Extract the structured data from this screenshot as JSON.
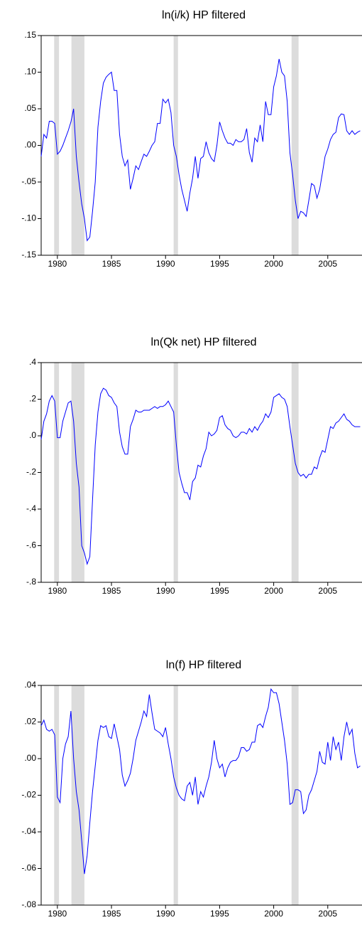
{
  "chart_data": [
    {
      "type": "line",
      "title": "ln(i/k) HP filtered",
      "x": [
        1978.5,
        1978.75,
        1979,
        1979.25,
        1979.5,
        1979.75,
        1980,
        1980.25,
        1980.5,
        1980.75,
        1981,
        1981.25,
        1981.5,
        1981.75,
        1982,
        1982.25,
        1982.5,
        1982.75,
        1983,
        1983.25,
        1983.5,
        1983.75,
        1984,
        1984.25,
        1984.5,
        1984.75,
        1985,
        1985.25,
        1985.5,
        1985.75,
        1986,
        1986.25,
        1986.5,
        1986.75,
        1987,
        1987.25,
        1987.5,
        1987.75,
        1988,
        1988.25,
        1988.5,
        1988.75,
        1989,
        1989.25,
        1989.5,
        1989.75,
        1990,
        1990.25,
        1990.5,
        1990.75,
        1991,
        1991.25,
        1991.5,
        1991.75,
        1992,
        1992.25,
        1992.5,
        1992.75,
        1993,
        1993.25,
        1993.5,
        1993.75,
        1994,
        1994.25,
        1994.5,
        1994.75,
        1995,
        1995.25,
        1995.5,
        1995.75,
        1996,
        1996.25,
        1996.5,
        1996.75,
        1997,
        1997.25,
        1997.5,
        1997.75,
        1998,
        1998.25,
        1998.5,
        1998.75,
        1999,
        1999.25,
        1999.5,
        1999.75,
        2000,
        2000.25,
        2000.5,
        2000.75,
        2001,
        2001.25,
        2001.5,
        2001.75,
        2002,
        2002.25,
        2002.5,
        2002.75,
        2003,
        2003.25,
        2003.5,
        2003.75,
        2004,
        2004.25,
        2004.5,
        2004.75,
        2005,
        2005.25,
        2005.5,
        2005.75,
        2006,
        2006.25,
        2006.5,
        2006.75,
        2007,
        2007.25,
        2007.5,
        2007.75,
        2008
      ],
      "series": [
        {
          "color": "#0000ff",
          "values": [
            -0.015,
            0.015,
            0.01,
            0.033,
            0.033,
            0.03,
            -0.012,
            -0.008,
            0.0,
            0.01,
            0.02,
            0.032,
            0.05,
            -0.015,
            -0.05,
            -0.08,
            -0.1,
            -0.13,
            -0.125,
            -0.09,
            -0.05,
            0.025,
            0.06,
            0.085,
            0.093,
            0.097,
            0.1,
            0.075,
            0.075,
            0.015,
            -0.015,
            -0.028,
            -0.02,
            -0.06,
            -0.045,
            -0.028,
            -0.033,
            -0.022,
            -0.012,
            -0.015,
            -0.008,
            0.0,
            0.005,
            0.03,
            0.03,
            0.063,
            0.058,
            0.063,
            0.045,
            0.0,
            -0.015,
            -0.04,
            -0.06,
            -0.075,
            -0.09,
            -0.065,
            -0.045,
            -0.015,
            -0.045,
            -0.018,
            -0.015,
            0.005,
            -0.01,
            -0.018,
            -0.022,
            0.0,
            0.032,
            0.02,
            0.01,
            0.003,
            0.003,
            0.0,
            0.008,
            0.005,
            0.005,
            0.008,
            0.023,
            -0.01,
            -0.023,
            0.01,
            0.005,
            0.028,
            0.005,
            0.06,
            0.042,
            0.042,
            0.08,
            0.095,
            0.118,
            0.1,
            0.095,
            0.06,
            -0.01,
            -0.04,
            -0.075,
            -0.1,
            -0.09,
            -0.092,
            -0.097,
            -0.075,
            -0.052,
            -0.055,
            -0.072,
            -0.06,
            -0.038,
            -0.015,
            -0.005,
            0.008,
            0.015,
            0.018,
            0.038,
            0.043,
            0.042,
            0.02,
            0.015,
            0.02,
            0.015,
            0.018,
            0.02
          ]
        }
      ],
      "xlim": [
        1978.5,
        2008.1
      ],
      "xticks": [
        1980,
        1985,
        1990,
        1995,
        2000,
        2005
      ],
      "ylim": [
        -0.15,
        0.15
      ],
      "yticks": [
        {
          "value": -0.15,
          "label": "-.15"
        },
        {
          "value": -0.1,
          "label": "-.10"
        },
        {
          "value": -0.05,
          "label": "-.05"
        },
        {
          "value": 0,
          "label": ".00"
        },
        {
          "value": 0.05,
          "label": ".05"
        },
        {
          "value": 0.1,
          "label": ".10"
        },
        {
          "value": 0.15,
          "label": ".15"
        }
      ],
      "shaded": [
        [
          1979.7,
          1980.15
        ],
        [
          1981.3,
          1982.5
        ],
        [
          1990.75,
          1991.15
        ],
        [
          2001.65,
          2002.3
        ]
      ],
      "shade_color": "#dcdcdc"
    },
    {
      "type": "line",
      "title": "ln(Qk net) HP filtered",
      "x": [
        1978.5,
        1978.75,
        1979,
        1979.25,
        1979.5,
        1979.75,
        1980,
        1980.25,
        1980.5,
        1980.75,
        1981,
        1981.25,
        1981.5,
        1981.75,
        1982,
        1982.25,
        1982.5,
        1982.75,
        1983,
        1983.25,
        1983.5,
        1983.75,
        1984,
        1984.25,
        1984.5,
        1984.75,
        1985,
        1985.25,
        1985.5,
        1985.75,
        1986,
        1986.25,
        1986.5,
        1986.75,
        1987,
        1987.25,
        1987.5,
        1987.75,
        1988,
        1988.25,
        1988.5,
        1988.75,
        1989,
        1989.25,
        1989.5,
        1989.75,
        1990,
        1990.25,
        1990.5,
        1990.75,
        1991,
        1991.25,
        1991.5,
        1991.75,
        1992,
        1992.25,
        1992.5,
        1992.75,
        1993,
        1993.25,
        1993.5,
        1993.75,
        1994,
        1994.25,
        1994.5,
        1994.75,
        1995,
        1995.25,
        1995.5,
        1995.75,
        1996,
        1996.25,
        1996.5,
        1996.75,
        1997,
        1997.25,
        1997.5,
        1997.75,
        1998,
        1998.25,
        1998.5,
        1998.75,
        1999,
        1999.25,
        1999.5,
        1999.75,
        2000,
        2000.25,
        2000.5,
        2000.75,
        2001,
        2001.25,
        2001.5,
        2001.75,
        2002,
        2002.25,
        2002.5,
        2002.75,
        2003,
        2003.25,
        2003.5,
        2003.75,
        2004,
        2004.25,
        2004.5,
        2004.75,
        2005,
        2005.25,
        2005.5,
        2005.75,
        2006,
        2006.25,
        2006.5,
        2006.75,
        2007,
        2007.25,
        2007.5,
        2007.75,
        2008
      ],
      "series": [
        {
          "color": "#0000ff",
          "values": [
            -0.02,
            0.08,
            0.12,
            0.19,
            0.22,
            0.19,
            -0.01,
            -0.01,
            0.08,
            0.13,
            0.18,
            0.19,
            0.08,
            -0.15,
            -0.28,
            -0.6,
            -0.64,
            -0.7,
            -0.66,
            -0.35,
            -0.05,
            0.13,
            0.23,
            0.26,
            0.25,
            0.22,
            0.21,
            0.18,
            0.16,
            0.02,
            -0.06,
            -0.1,
            -0.1,
            0.05,
            0.09,
            0.14,
            0.13,
            0.13,
            0.14,
            0.14,
            0.14,
            0.15,
            0.16,
            0.15,
            0.16,
            0.16,
            0.17,
            0.19,
            0.16,
            0.13,
            -0.05,
            -0.2,
            -0.26,
            -0.31,
            -0.31,
            -0.35,
            -0.25,
            -0.23,
            -0.16,
            -0.17,
            -0.11,
            -0.07,
            0.02,
            0.0,
            0.01,
            0.03,
            0.1,
            0.11,
            0.06,
            0.04,
            0.03,
            0.0,
            -0.01,
            0.0,
            0.02,
            0.02,
            0.01,
            0.04,
            0.02,
            0.05,
            0.03,
            0.06,
            0.08,
            0.12,
            0.1,
            0.13,
            0.21,
            0.22,
            0.23,
            0.21,
            0.2,
            0.16,
            0.05,
            -0.05,
            -0.15,
            -0.2,
            -0.22,
            -0.21,
            -0.23,
            -0.21,
            -0.21,
            -0.17,
            -0.18,
            -0.12,
            -0.08,
            -0.09,
            -0.02,
            0.05,
            0.04,
            0.07,
            0.08,
            0.1,
            0.12,
            0.09,
            0.08,
            0.06,
            0.05,
            0.05,
            0.05
          ]
        }
      ],
      "xlim": [
        1978.5,
        2008.1
      ],
      "xticks": [
        1980,
        1985,
        1990,
        1995,
        2000,
        2005
      ],
      "ylim": [
        -0.8,
        0.4
      ],
      "yticks": [
        {
          "value": -0.8,
          "label": "-.8"
        },
        {
          "value": -0.6,
          "label": "-.6"
        },
        {
          "value": -0.4,
          "label": "-.4"
        },
        {
          "value": -0.2,
          "label": "-.2"
        },
        {
          "value": 0,
          "label": ".0"
        },
        {
          "value": 0.2,
          "label": ".2"
        },
        {
          "value": 0.4,
          "label": ".4"
        }
      ],
      "shaded": [
        [
          1979.7,
          1980.15
        ],
        [
          1981.3,
          1982.5
        ],
        [
          1990.75,
          1991.15
        ],
        [
          2001.65,
          2002.3
        ]
      ],
      "shade_color": "#dcdcdc"
    },
    {
      "type": "line",
      "title": "ln(f) HP filtered",
      "x": [
        1978.5,
        1978.75,
        1979,
        1979.25,
        1979.5,
        1979.75,
        1980,
        1980.25,
        1980.5,
        1980.75,
        1981,
        1981.25,
        1981.5,
        1981.75,
        1982,
        1982.25,
        1982.5,
        1982.75,
        1983,
        1983.25,
        1983.5,
        1983.75,
        1984,
        1984.25,
        1984.5,
        1984.75,
        1985,
        1985.25,
        1985.5,
        1985.75,
        1986,
        1986.25,
        1986.5,
        1986.75,
        1987,
        1987.25,
        1987.5,
        1987.75,
        1988,
        1988.25,
        1988.5,
        1988.75,
        1989,
        1989.25,
        1989.5,
        1989.75,
        1990,
        1990.25,
        1990.5,
        1990.75,
        1991,
        1991.25,
        1991.5,
        1991.75,
        1992,
        1992.25,
        1992.5,
        1992.75,
        1993,
        1993.25,
        1993.5,
        1993.75,
        1994,
        1994.25,
        1994.5,
        1994.75,
        1995,
        1995.25,
        1995.5,
        1995.75,
        1996,
        1996.25,
        1996.5,
        1996.75,
        1997,
        1997.25,
        1997.5,
        1997.75,
        1998,
        1998.25,
        1998.5,
        1998.75,
        1999,
        1999.25,
        1999.5,
        1999.75,
        2000,
        2000.25,
        2000.5,
        2000.75,
        2001,
        2001.25,
        2001.5,
        2001.75,
        2002,
        2002.25,
        2002.5,
        2002.75,
        2003,
        2003.25,
        2003.5,
        2003.75,
        2004,
        2004.25,
        2004.5,
        2004.75,
        2005,
        2005.25,
        2005.5,
        2005.75,
        2006,
        2006.25,
        2006.5,
        2006.75,
        2007,
        2007.25,
        2007.5,
        2007.75,
        2008
      ],
      "series": [
        {
          "color": "#0000ff",
          "values": [
            0.018,
            0.021,
            0.016,
            0.015,
            0.016,
            0.013,
            -0.021,
            -0.024,
            0.0,
            0.008,
            0.012,
            0.026,
            0.0,
            -0.018,
            -0.028,
            -0.045,
            -0.063,
            -0.053,
            -0.035,
            -0.018,
            -0.004,
            0.01,
            0.018,
            0.017,
            0.018,
            0.012,
            0.011,
            0.019,
            0.012,
            0.005,
            -0.009,
            -0.015,
            -0.012,
            -0.008,
            0.0,
            0.01,
            0.015,
            0.02,
            0.026,
            0.023,
            0.035,
            0.025,
            0.016,
            0.015,
            0.014,
            0.012,
            0.017,
            0.008,
            0.0,
            -0.01,
            -0.016,
            -0.02,
            -0.022,
            -0.023,
            -0.015,
            -0.013,
            -0.02,
            -0.01,
            -0.025,
            -0.018,
            -0.021,
            -0.015,
            -0.01,
            -0.002,
            0.01,
            0.0,
            -0.005,
            -0.003,
            -0.01,
            -0.005,
            -0.002,
            -0.001,
            -0.001,
            0.001,
            0.006,
            0.006,
            0.004,
            0.005,
            0.009,
            0.009,
            0.018,
            0.019,
            0.017,
            0.023,
            0.028,
            0.038,
            0.036,
            0.036,
            0.03,
            0.02,
            0.01,
            -0.003,
            -0.025,
            -0.024,
            -0.017,
            -0.017,
            -0.018,
            -0.03,
            -0.028,
            -0.02,
            -0.017,
            -0.012,
            -0.007,
            0.004,
            -0.002,
            -0.003,
            0.009,
            -0.001,
            0.012,
            0.005,
            0.009,
            -0.001,
            0.012,
            0.02,
            0.013,
            0.016,
            0.003,
            -0.005,
            -0.004
          ]
        }
      ],
      "xlim": [
        1978.5,
        2008.1
      ],
      "xticks": [
        1980,
        1985,
        1990,
        1995,
        2000,
        2005
      ],
      "ylim": [
        -0.08,
        0.04
      ],
      "yticks": [
        {
          "value": -0.08,
          "label": "-.08"
        },
        {
          "value": -0.06,
          "label": "-.06"
        },
        {
          "value": -0.04,
          "label": "-.04"
        },
        {
          "value": -0.02,
          "label": "-.02"
        },
        {
          "value": 0,
          "label": ".00"
        },
        {
          "value": 0.02,
          "label": ".02"
        },
        {
          "value": 0.04,
          "label": ".04"
        }
      ],
      "shaded": [
        [
          1979.7,
          1980.15
        ],
        [
          1981.3,
          1982.5
        ],
        [
          1990.75,
          1991.15
        ],
        [
          2001.65,
          2002.3
        ]
      ],
      "shade_color": "#dcdcdc"
    }
  ]
}
